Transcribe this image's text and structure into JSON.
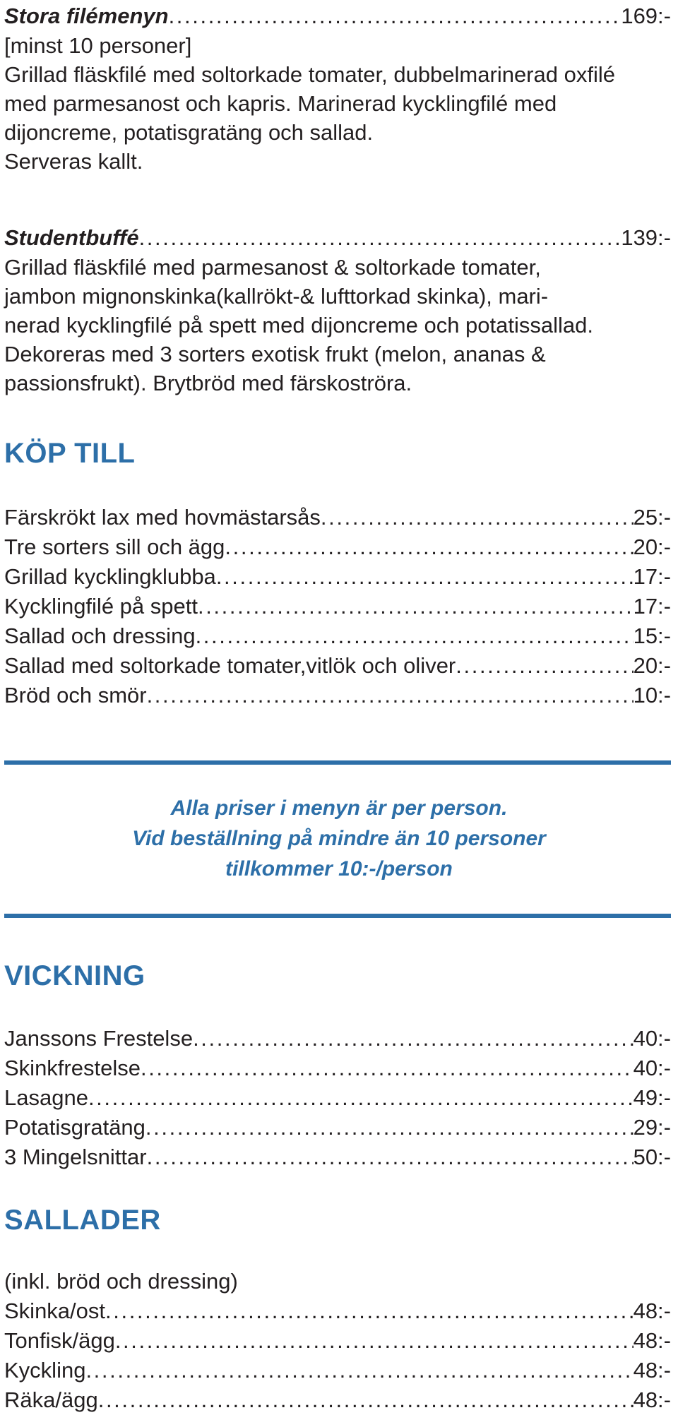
{
  "stora": {
    "title": "Stora filémenyn",
    "price": "169:-",
    "lines": [
      "[minst 10 personer]",
      "Grillad fläskfilé med soltorkade tomater, dubbelmarinerad oxfilé",
      "med parmesanost och kapris. Marinerad kycklingfilé med",
      "dijoncreme, potatisgratäng och sallad.",
      "Serveras kallt."
    ]
  },
  "student": {
    "title": "Studentbuffé",
    "price": "139:-",
    "lines": [
      "Grillad fläskfilé med parmesanost & soltorkade tomater,",
      "jambon mignonskinka(kallrökt-& lufttorkad skinka), mari-",
      "nerad kycklingfilé på spett med dijoncreme och potatissallad.",
      "Dekoreras med 3 sorters exotisk frukt (melon, ananas &",
      "passionsfrukt). Brytbröd med färskoströra."
    ]
  },
  "kop_till": {
    "heading": "KÖP TILL",
    "items": [
      {
        "name": "Färskrökt lax med hovmästarsås",
        "price": "25:-"
      },
      {
        "name": "Tre sorters sill och ägg",
        "price": "20:-"
      },
      {
        "name": "Grillad kycklingklubba",
        "price": "17:-"
      },
      {
        "name": "Kycklingfilé på spett",
        "price": "17:-"
      },
      {
        "name": "Sallad och dressing",
        "price": "15:-"
      },
      {
        "name": "Sallad med soltorkade tomater,vitlök och oliver",
        "price": "20:-"
      },
      {
        "name": "Bröd och smör",
        "price": "10:-"
      }
    ]
  },
  "notice": {
    "line1": "Alla priser i menyn är per person.",
    "line2": "Vid beställning på mindre än 10 personer",
    "line3": "tillkommer 10:-/person"
  },
  "vickning": {
    "heading": "VICKNING",
    "items": [
      {
        "name": "Janssons Frestelse",
        "price": "40:-"
      },
      {
        "name": "Skinkfrestelse",
        "price": "40:-"
      },
      {
        "name": "Lasagne",
        "price": "49:-"
      },
      {
        "name": "Potatisgratäng",
        "price": "29:-"
      },
      {
        "name": "3 Mingelsnittar",
        "price": "50:-"
      }
    ]
  },
  "sallader": {
    "heading": "SALLADER",
    "note": "(inkl. bröd och dressing)",
    "items": [
      {
        "name": "Skinka/ost",
        "price": "48:-"
      },
      {
        "name": "Tonfisk/ägg",
        "price": "48:-"
      },
      {
        "name": "Kyckling",
        "price": "48:-"
      },
      {
        "name": "Räka/ägg",
        "price": "48:-"
      }
    ]
  },
  "colors": {
    "accent": "#2d6fa8",
    "text": "#231f20"
  }
}
